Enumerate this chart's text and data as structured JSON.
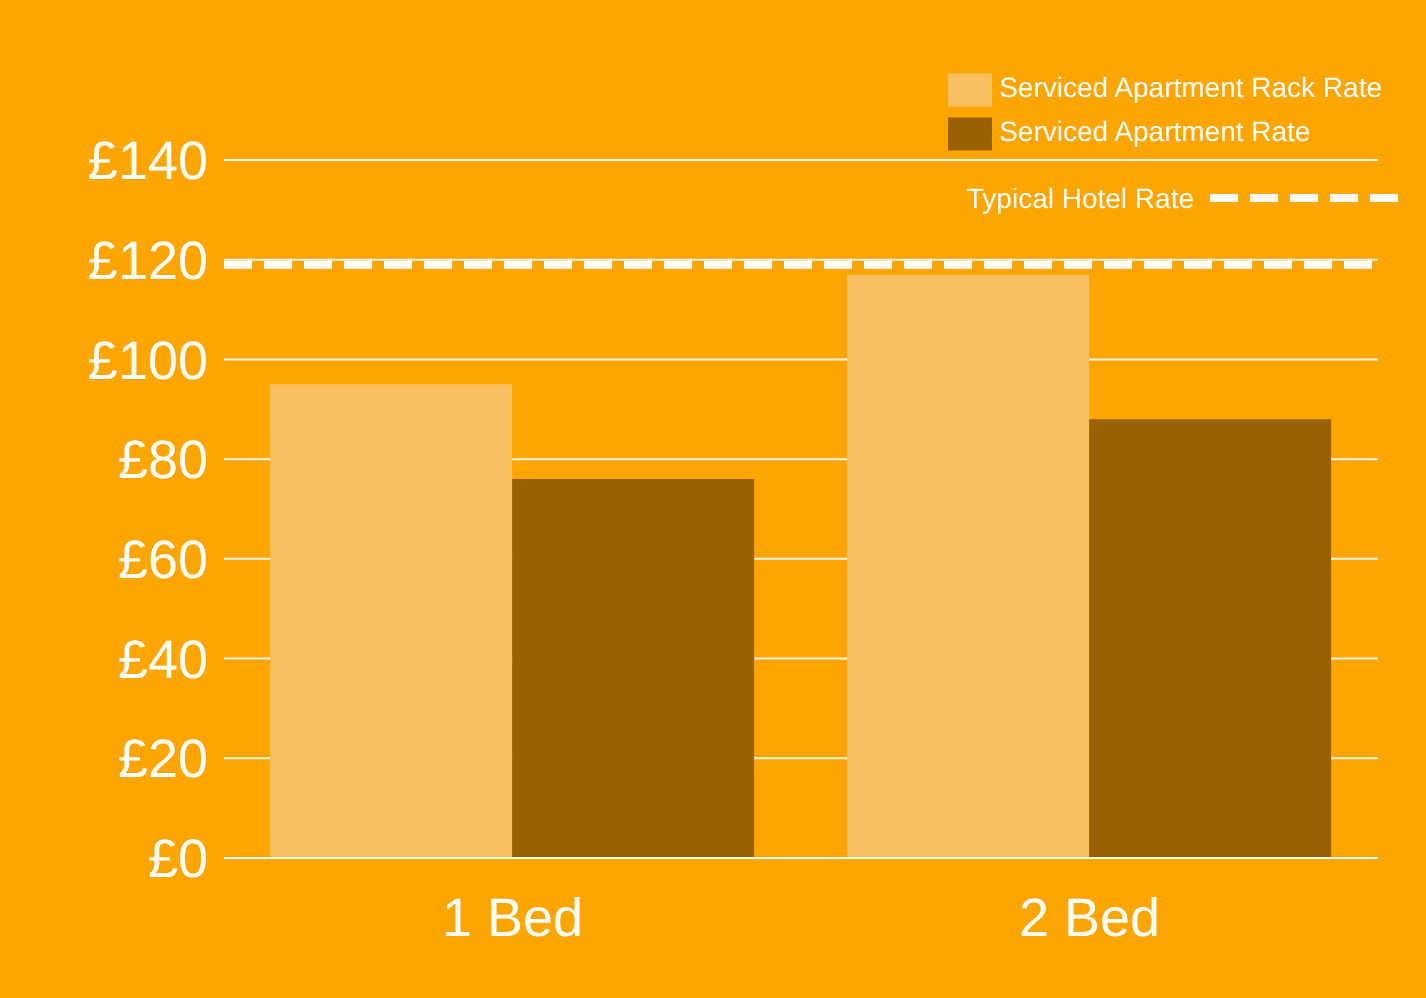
{
  "chart_data": {
    "type": "bar",
    "categories": [
      "1 Bed",
      "2 Bed"
    ],
    "series": [
      {
        "name": "Serviced Apartment Rack Rate",
        "color": "#f9c062",
        "values": [
          95,
          117
        ]
      },
      {
        "name": "Serviced Apartment Rate",
        "color": "#9a6100",
        "values": [
          76,
          88
        ]
      }
    ],
    "ref_lines": [
      {
        "axis": "y",
        "value": 119,
        "label": "Typical Hotel Rate",
        "color": "#ffffff",
        "line_style": "dashed"
      }
    ],
    "ylim": [
      0,
      140
    ],
    "yticks": [
      {
        "value": 0,
        "label": "£0"
      },
      {
        "value": 20,
        "label": "£20"
      },
      {
        "value": 40,
        "label": "£40"
      },
      {
        "value": 60,
        "label": "£60"
      },
      {
        "value": 80,
        "label": "£80"
      },
      {
        "value": 100,
        "label": "£100"
      },
      {
        "value": 120,
        "label": "£120"
      },
      {
        "value": 140,
        "label": "£140"
      }
    ],
    "grid": "y",
    "legend": "top right"
  }
}
